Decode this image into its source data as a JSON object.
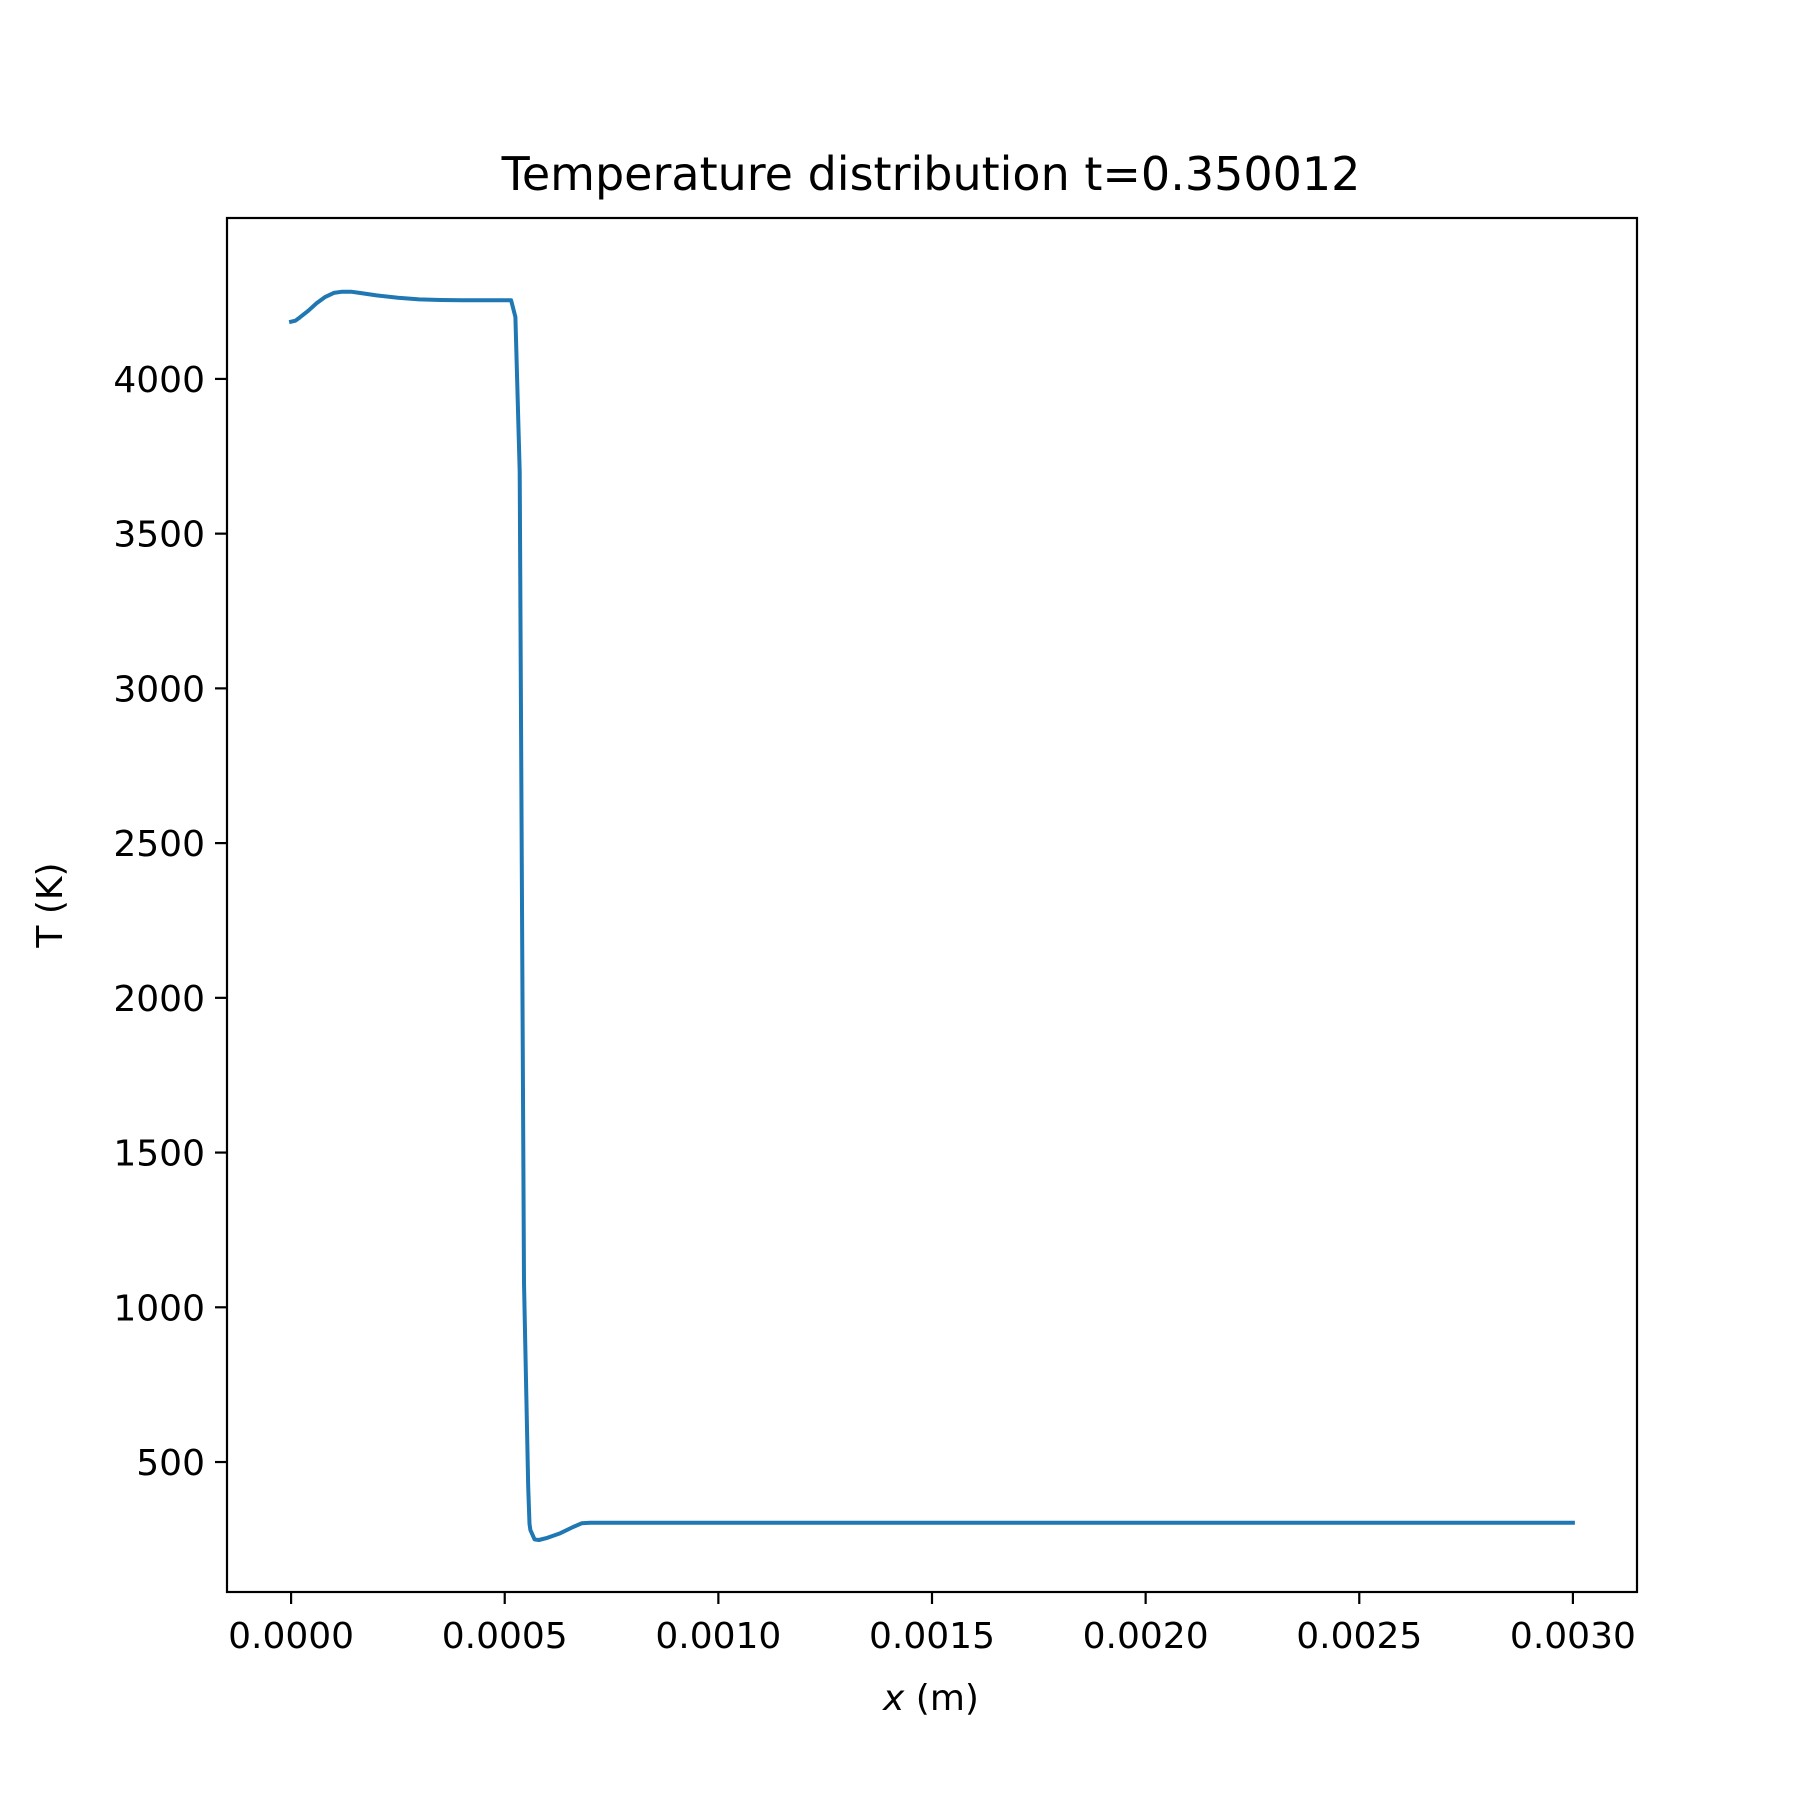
{
  "chart_data": {
    "type": "line",
    "title": "Temperature distribution t=0.350012",
    "xlabel_var": "x",
    "xlabel_unit": " (m)",
    "ylabel": "T (K)",
    "xlim": [
      -0.00015,
      0.00315
    ],
    "ylim": [
      80,
      4520
    ],
    "xticks": [
      0.0,
      0.0005,
      0.001,
      0.0015,
      0.002,
      0.0025,
      0.003
    ],
    "xtick_labels": [
      "0.0000",
      "0.0005",
      "0.0010",
      "0.0015",
      "0.0020",
      "0.0025",
      "0.0030"
    ],
    "yticks": [
      500,
      1000,
      1500,
      2000,
      2500,
      3000,
      3500,
      4000
    ],
    "ytick_labels": [
      "500",
      "1000",
      "1500",
      "2000",
      "2500",
      "3000",
      "3500",
      "4000"
    ],
    "grid": false,
    "line_color": "#1f77b4",
    "series": [
      {
        "x": [
          0.0,
          1e-05,
          2e-05,
          4e-05,
          6e-05,
          8e-05,
          0.0001,
          0.00012,
          0.00014,
          0.00016,
          0.0002,
          0.00025,
          0.0003,
          0.00035,
          0.0004,
          0.00045,
          0.000515,
          0.000525,
          0.000535,
          0.000545,
          0.000555,
          0.000558,
          0.00056,
          0.00057,
          0.00058,
          0.0006,
          0.00063,
          0.00066,
          0.00068,
          0.0007,
          0.0008,
          0.001,
          0.0015,
          0.002,
          0.0025,
          0.003
        ],
        "y": [
          4185,
          4188,
          4198,
          4220,
          4245,
          4265,
          4278,
          4282,
          4282,
          4278,
          4270,
          4262,
          4257,
          4255,
          4254,
          4254,
          4254,
          4200,
          3700,
          1080,
          420,
          300,
          280,
          250,
          248,
          255,
          270,
          290,
          302,
          304,
          304,
          304,
          304,
          304,
          304,
          304
        ]
      }
    ]
  }
}
